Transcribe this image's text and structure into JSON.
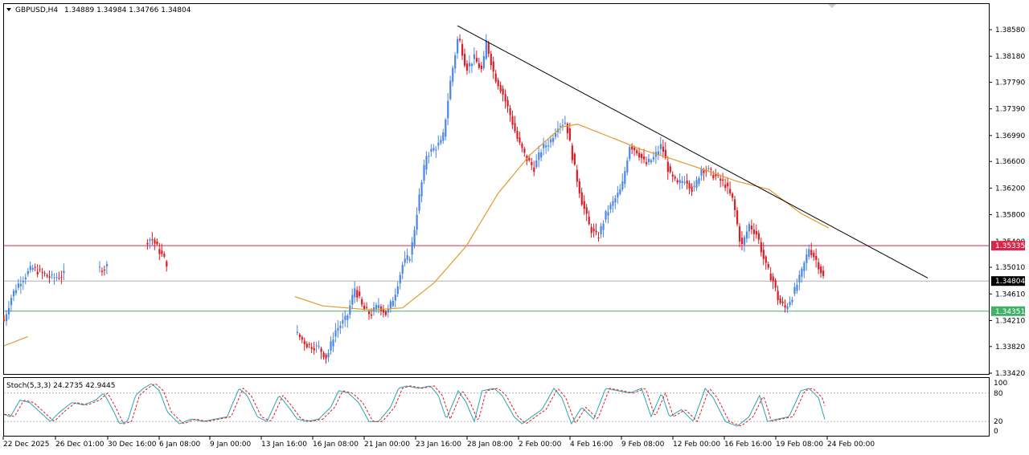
{
  "header": {
    "symbol_tf": "GBPUSD,H4",
    "ohlc": "1.34889 1.34984 1.34766 1.34804"
  },
  "price_axis": {
    "labels": [
      "1.38580",
      "1.38180",
      "1.37790",
      "1.37390",
      "1.36990",
      "1.36600",
      "1.36200",
      "1.35800",
      "1.35010",
      "1.34610",
      "1.34210",
      "1.33820",
      "1.33420"
    ],
    "partial_label": "1.35400",
    "ylim": [
      1.3338,
      1.3893
    ]
  },
  "time_axis": {
    "labels": [
      "22 Dec 2025",
      "26 Dec 01:00",
      "30 Dec 16:00",
      "6 Jan 08:00",
      "9 Jan 00:00",
      "13 Jan 16:00",
      "16 Jan 08:00",
      "21 Jan 00:00",
      "23 Jan 16:00",
      "28 Jan 08:00",
      "2 Feb 00:00",
      "4 Feb 16:00",
      "9 Feb 08:00",
      "12 Feb 00:00",
      "16 Feb 16:00",
      "19 Feb 08:00",
      "24 Feb 00:00"
    ]
  },
  "levels": {
    "resistance": {
      "value": 1.35335,
      "label": "1.35335",
      "color": "#d8274a"
    },
    "current": {
      "value": 1.34804,
      "label": "1.34804",
      "color": "#000000"
    },
    "support": {
      "value": 1.34351,
      "label": "1.34351",
      "color": "#41b16a"
    }
  },
  "colors": {
    "bull": "#4a86e8",
    "bear": "#e01b24",
    "ma": "#e39a2b",
    "trendline": "#000000",
    "stoch_main": "#2aa4b0",
    "stoch_signal": "#e01b24"
  },
  "stochastic": {
    "label": "Stoch(5,3,3) 24.2735 42.9445",
    "levels": [
      "100",
      "80",
      "20",
      "0"
    ]
  },
  "chart_data": {
    "type": "candlestick",
    "symbol": "GBPUSD",
    "timeframe": "H4",
    "trendline": {
      "from": {
        "date": "27 Jan",
        "price": 1.3864
      },
      "to": {
        "date": "25 Feb",
        "price": 1.3485
      }
    },
    "moving_average_path": [
      [
        0,
        1.3383
      ],
      [
        30,
        1.3397
      ],
      [
        365,
        1.3457
      ],
      [
        400,
        1.3443
      ],
      [
        460,
        1.3437
      ],
      [
        500,
        1.344
      ],
      [
        540,
        1.3478
      ],
      [
        580,
        1.3533
      ],
      [
        620,
        1.3612
      ],
      [
        660,
        1.367
      ],
      [
        700,
        1.3712
      ],
      [
        720,
        1.3716
      ],
      [
        760,
        1.3697
      ],
      [
        800,
        1.3678
      ],
      [
        840,
        1.3663
      ],
      [
        880,
        1.3647
      ],
      [
        920,
        1.363
      ],
      [
        960,
        1.3618
      ],
      [
        1000,
        1.3582
      ],
      [
        1035,
        1.356
      ]
    ],
    "price_path": [
      [
        0,
        1.3422
      ],
      [
        10,
        1.346
      ],
      [
        20,
        1.348
      ],
      [
        35,
        1.35
      ],
      [
        50,
        1.349
      ],
      [
        60,
        1.3485
      ],
      [
        75,
        1.349
      ],
      [
        125,
        1.35
      ],
      [
        185,
        1.3545
      ],
      [
        200,
        1.3515
      ],
      [
        205,
        1.3505
      ],
      [
        368,
        1.34
      ],
      [
        380,
        1.3385
      ],
      [
        395,
        1.338
      ],
      [
        405,
        1.3365
      ],
      [
        415,
        1.3405
      ],
      [
        430,
        1.3425
      ],
      [
        440,
        1.347
      ],
      [
        450,
        1.344
      ],
      [
        460,
        1.343
      ],
      [
        470,
        1.3445
      ],
      [
        480,
        1.343
      ],
      [
        490,
        1.346
      ],
      [
        500,
        1.3505
      ],
      [
        510,
        1.352
      ],
      [
        520,
        1.36
      ],
      [
        530,
        1.367
      ],
      [
        540,
        1.368
      ],
      [
        550,
        1.369
      ],
      [
        560,
        1.378
      ],
      [
        570,
        1.385
      ],
      [
        580,
        1.38
      ],
      [
        590,
        1.3815
      ],
      [
        600,
        1.3795
      ],
      [
        605,
        1.384
      ],
      [
        615,
        1.379
      ],
      [
        625,
        1.3765
      ],
      [
        635,
        1.373
      ],
      [
        645,
        1.369
      ],
      [
        655,
        1.3665
      ],
      [
        665,
        1.365
      ],
      [
        675,
        1.368
      ],
      [
        685,
        1.369
      ],
      [
        695,
        1.3715
      ],
      [
        705,
        1.372
      ],
      [
        715,
        1.3655
      ],
      [
        725,
        1.36
      ],
      [
        735,
        1.356
      ],
      [
        745,
        1.3545
      ],
      [
        755,
        1.358
      ],
      [
        765,
        1.36
      ],
      [
        775,
        1.362
      ],
      [
        785,
        1.3685
      ],
      [
        795,
        1.3675
      ],
      [
        805,
        1.3655
      ],
      [
        815,
        1.3665
      ],
      [
        825,
        1.3685
      ],
      [
        835,
        1.364
      ],
      [
        845,
        1.3625
      ],
      [
        855,
        1.3635
      ],
      [
        865,
        1.3615
      ],
      [
        875,
        1.365
      ],
      [
        885,
        1.3645
      ],
      [
        895,
        1.3635
      ],
      [
        905,
        1.3625
      ],
      [
        915,
        1.36
      ],
      [
        925,
        1.353
      ],
      [
        935,
        1.3565
      ],
      [
        945,
        1.355
      ],
      [
        955,
        1.3505
      ],
      [
        965,
        1.348
      ],
      [
        972,
        1.345
      ],
      [
        980,
        1.344
      ],
      [
        990,
        1.346
      ],
      [
        1000,
        1.349
      ],
      [
        1010,
        1.353
      ],
      [
        1020,
        1.351
      ],
      [
        1030,
        1.348
      ]
    ],
    "stochastic_path": [
      [
        0,
        35
      ],
      [
        8,
        30
      ],
      [
        20,
        65
      ],
      [
        32,
        60
      ],
      [
        45,
        40
      ],
      [
        58,
        20
      ],
      [
        70,
        40
      ],
      [
        85,
        60
      ],
      [
        100,
        55
      ],
      [
        115,
        65
      ],
      [
        125,
        80
      ],
      [
        135,
        50
      ],
      [
        145,
        15
      ],
      [
        155,
        20
      ],
      [
        165,
        75
      ],
      [
        175,
        90
      ],
      [
        185,
        100
      ],
      [
        195,
        85
      ],
      [
        205,
        40
      ],
      [
        220,
        15
      ],
      [
        235,
        25
      ],
      [
        250,
        20
      ],
      [
        265,
        25
      ],
      [
        280,
        30
      ],
      [
        295,
        90
      ],
      [
        305,
        75
      ],
      [
        318,
        30
      ],
      [
        330,
        20
      ],
      [
        345,
        75
      ],
      [
        355,
        55
      ],
      [
        368,
        25
      ],
      [
        380,
        20
      ],
      [
        395,
        25
      ],
      [
        410,
        50
      ],
      [
        420,
        85
      ],
      [
        432,
        80
      ],
      [
        445,
        60
      ],
      [
        458,
        20
      ],
      [
        470,
        20
      ],
      [
        485,
        50
      ],
      [
        495,
        90
      ],
      [
        505,
        95
      ],
      [
        520,
        90
      ],
      [
        535,
        95
      ],
      [
        545,
        75
      ],
      [
        555,
        25
      ],
      [
        570,
        85
      ],
      [
        580,
        60
      ],
      [
        590,
        20
      ],
      [
        600,
        85
      ],
      [
        615,
        90
      ],
      [
        625,
        75
      ],
      [
        640,
        30
      ],
      [
        650,
        15
      ],
      [
        662,
        30
      ],
      [
        675,
        45
      ],
      [
        690,
        90
      ],
      [
        700,
        70
      ],
      [
        712,
        15
      ],
      [
        725,
        50
      ],
      [
        740,
        25
      ],
      [
        755,
        90
      ],
      [
        770,
        85
      ],
      [
        785,
        80
      ],
      [
        800,
        90
      ],
      [
        812,
        30
      ],
      [
        825,
        80
      ],
      [
        835,
        30
      ],
      [
        850,
        45
      ],
      [
        865,
        20
      ],
      [
        880,
        90
      ],
      [
        890,
        70
      ],
      [
        905,
        20
      ],
      [
        920,
        10
      ],
      [
        935,
        30
      ],
      [
        948,
        75
      ],
      [
        958,
        20
      ],
      [
        970,
        25
      ],
      [
        985,
        30
      ],
      [
        1000,
        85
      ],
      [
        1010,
        90
      ],
      [
        1022,
        70
      ],
      [
        1030,
        24
      ]
    ]
  }
}
